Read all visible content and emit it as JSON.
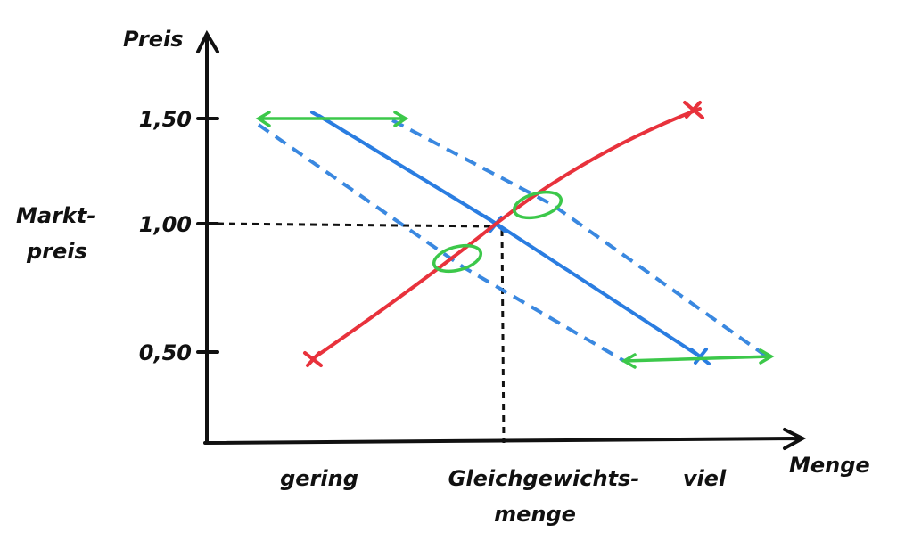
{
  "axes": {
    "y_label": "Preis",
    "x_label": "Menge"
  },
  "y_annotation": [
    "Markt-",
    "preis"
  ],
  "y_ticks": [
    "1,50",
    "1,00",
    "0,50"
  ],
  "x_labels": [
    [
      "gering"
    ],
    [
      "Gleichgewichts-",
      "menge"
    ],
    [
      "viel"
    ]
  ]
}
